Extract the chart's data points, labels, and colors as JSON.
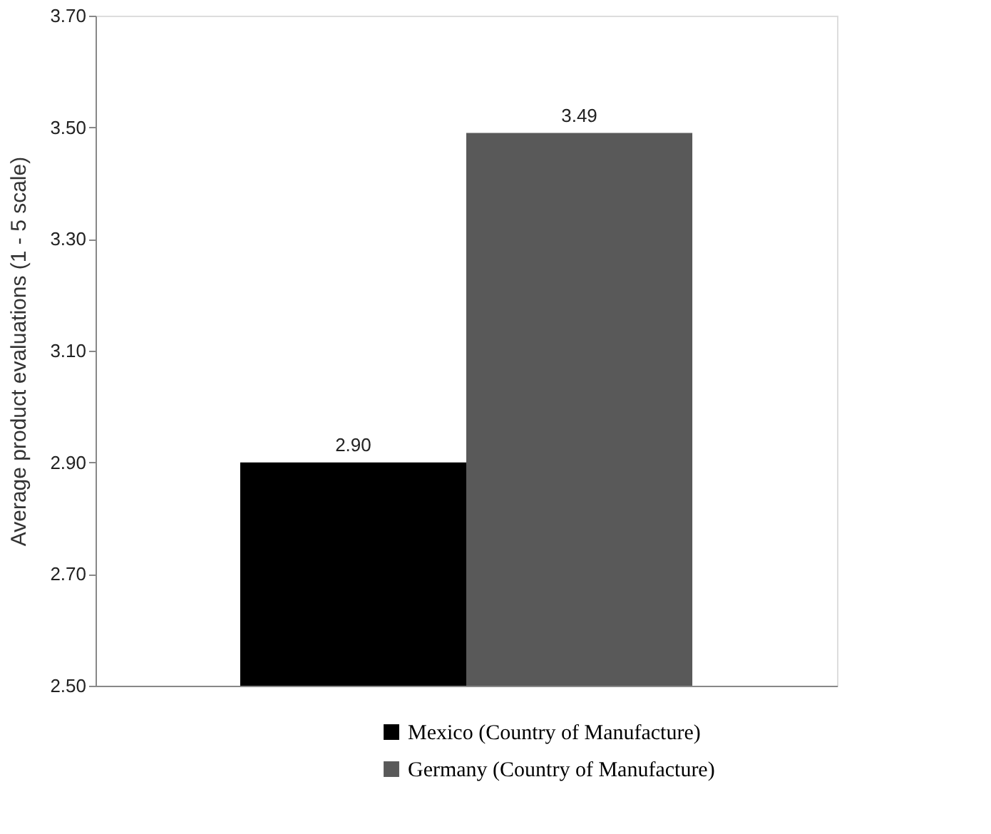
{
  "chart_data": {
    "type": "bar",
    "ylabel": "Average product evaluations (1 - 5 scale)",
    "categories": [
      null
    ],
    "series": [
      {
        "name": "Mexico (Country of Manufacture)",
        "color": "#000000",
        "values": [
          2.9
        ],
        "value_labels": [
          "2.90"
        ]
      },
      {
        "name": "Germany (Country of Manufacture)",
        "color": "#595959",
        "values": [
          3.49
        ],
        "value_labels": [
          "3.49"
        ]
      }
    ],
    "ylim": [
      2.5,
      3.7
    ],
    "yticks": [
      {
        "value": 2.5,
        "label": "2.50"
      },
      {
        "value": 2.7,
        "label": "2.70"
      },
      {
        "value": 2.9,
        "label": "2.90"
      },
      {
        "value": 3.1,
        "label": "3.10"
      },
      {
        "value": 3.3,
        "label": "3.30"
      },
      {
        "value": 3.5,
        "label": "3.50"
      },
      {
        "value": 3.7,
        "label": "3.70"
      }
    ],
    "legend": "bottom",
    "grid": false
  }
}
